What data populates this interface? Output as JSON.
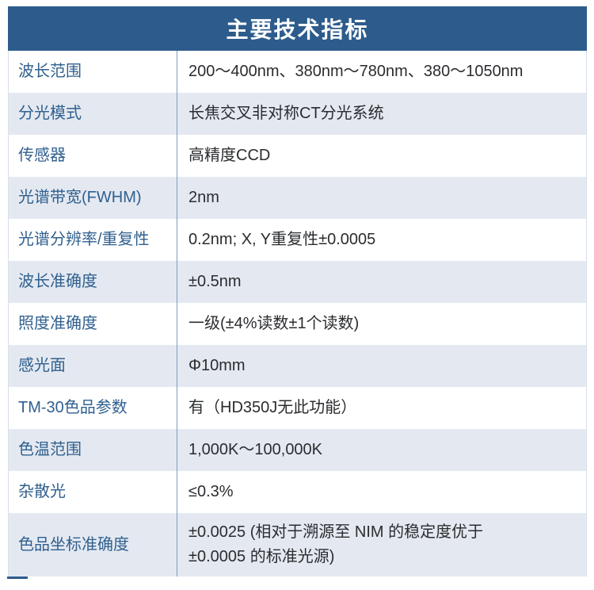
{
  "title": "主要技术指标",
  "colors": {
    "header_bg": "#2d5c8c",
    "label_text": "#30608f",
    "value_text": "#2a2c2f",
    "alt_row_bg": "#e4e9f1",
    "column_divider": "#7d9dc1",
    "outer_border": "#d6e0ec"
  },
  "table": {
    "rows": [
      {
        "label": "波长范围",
        "value": "200～400nm、380nm～780nm、380～1050nm"
      },
      {
        "label": "分光模式",
        "value": "长焦交叉非对称CT分光系统"
      },
      {
        "label": "传感器",
        "value": "高精度CCD"
      },
      {
        "label": "光谱带宽(FWHM)",
        "value": "2nm"
      },
      {
        "label": "光谱分辨率/重复性",
        "value": "0.2nm; X, Y重复性±0.0005"
      },
      {
        "label": "波长准确度",
        "value": "±0.5nm"
      },
      {
        "label": "照度准确度",
        "value": "一级(±4%读数±1个读数)"
      },
      {
        "label": "感光面",
        "value": "Φ10mm"
      },
      {
        "label": "TM-30色品参数",
        "value": "有（HD350J无此功能）"
      },
      {
        "label": "色温范围",
        "value": "1,000K～100,000K"
      },
      {
        "label": "杂散光",
        "value": "≤0.3%"
      },
      {
        "label": "色品坐标准确度",
        "value": "±0.0025 (相对于溯源至 NIM 的稳定度优于 ±0.0005 的标准光源)"
      }
    ]
  }
}
